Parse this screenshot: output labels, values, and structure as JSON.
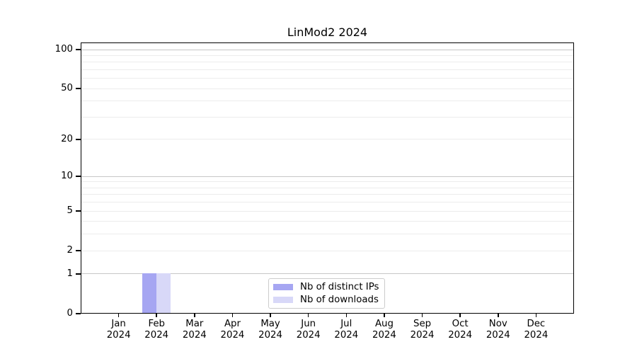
{
  "page": {
    "background": "#ffffff"
  },
  "chart_data": {
    "type": "bar",
    "title": "LinMod2 2024",
    "x_tick_labels": [
      {
        "month": "Jan",
        "year": "2024"
      },
      {
        "month": "Feb",
        "year": "2024"
      },
      {
        "month": "Mar",
        "year": "2024"
      },
      {
        "month": "Apr",
        "year": "2024"
      },
      {
        "month": "May",
        "year": "2024"
      },
      {
        "month": "Jun",
        "year": "2024"
      },
      {
        "month": "Jul",
        "year": "2024"
      },
      {
        "month": "Aug",
        "year": "2024"
      },
      {
        "month": "Sep",
        "year": "2024"
      },
      {
        "month": "Oct",
        "year": "2024"
      },
      {
        "month": "Nov",
        "year": "2024"
      },
      {
        "month": "Dec",
        "year": "2024"
      }
    ],
    "series": [
      {
        "name": "Nb of distinct IPs",
        "color": "#a6a6f2",
        "values": [
          0,
          1,
          0,
          0,
          0,
          0,
          0,
          0,
          0,
          0,
          0,
          0
        ]
      },
      {
        "name": "Nb of downloads",
        "color": "#d8d8f8",
        "values": [
          0,
          1,
          0,
          0,
          0,
          0,
          0,
          0,
          0,
          0,
          0,
          0
        ]
      }
    ],
    "y_axis": {
      "scale": "log10(value+1)",
      "tick_values": [
        0,
        1,
        2,
        5,
        10,
        20,
        50,
        100
      ],
      "major_gridlines": [
        1,
        10,
        100
      ],
      "minor_gridlines": [
        2,
        3,
        4,
        5,
        6,
        7,
        8,
        9,
        20,
        30,
        40,
        50,
        60,
        70,
        80,
        90
      ],
      "range": [
        0,
        113
      ]
    },
    "legend": {
      "position": "lower center"
    },
    "grid": true,
    "colors": {
      "spine": "#000000",
      "major_grid": "#c6c6c6",
      "minor_grid": "#ececec",
      "legend_border": "#cccccc",
      "text": "#000000"
    }
  }
}
